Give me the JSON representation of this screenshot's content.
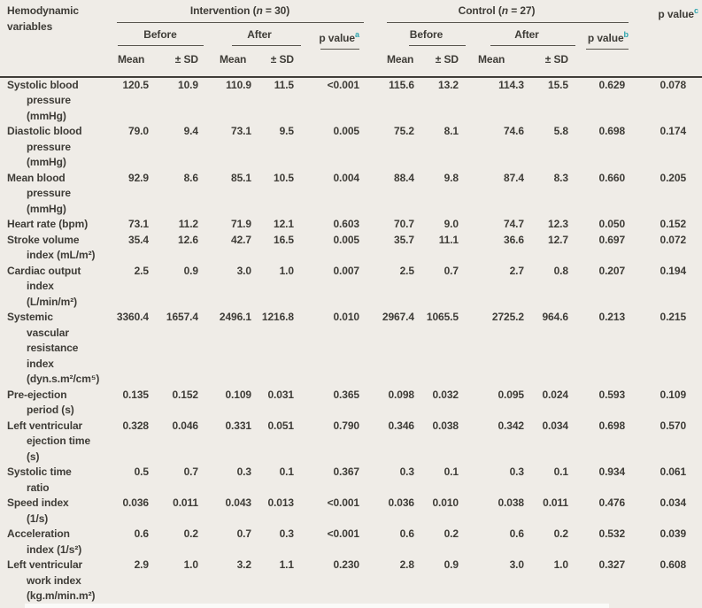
{
  "colors": {
    "background": "#efece7",
    "text": "#3e3c37",
    "rule": "#57544d",
    "rule_heavy": "#403e39",
    "superscript_teal": "#2ba3ad"
  },
  "header": {
    "variables_label": "Hemodynamic\nvariables",
    "intervention": {
      "pre": "Intervention (",
      "n": "n",
      "post": " = 30)"
    },
    "control": {
      "pre": "Control (",
      "n": "n",
      "post": " = 27)"
    },
    "before_label": "Before",
    "after_label": "After",
    "p_value_label": "p value",
    "sup_a": "a",
    "sup_b": "b",
    "sup_c": "c",
    "mean_label": "Mean",
    "sd_label": "± SD"
  },
  "table": {
    "column_keys": [
      "intervention_before_mean",
      "intervention_before_sd",
      "intervention_after_mean",
      "intervention_after_sd",
      "p_value_a",
      "control_before_mean",
      "control_before_sd",
      "control_after_mean",
      "control_after_sd",
      "p_value_b",
      "p_value_c"
    ],
    "rows": [
      {
        "label": "Systolic blood\npressure\n(mmHg)",
        "values": [
          "120.5",
          "10.9",
          "110.9",
          "11.5",
          "<0.001",
          "115.6",
          "13.2",
          "114.3",
          "15.5",
          "0.629",
          "0.078"
        ]
      },
      {
        "label": "Diastolic blood\npressure\n(mmHg)",
        "values": [
          "79.0",
          "9.4",
          "73.1",
          "9.5",
          "0.005",
          "75.2",
          "8.1",
          "74.6",
          "5.8",
          "0.698",
          "0.174"
        ]
      },
      {
        "label": "Mean blood\npressure\n(mmHg)",
        "values": [
          "92.9",
          "8.6",
          "85.1",
          "10.5",
          "0.004",
          "88.4",
          "9.8",
          "87.4",
          "8.3",
          "0.660",
          "0.205"
        ]
      },
      {
        "label": "Heart rate (bpm)",
        "values": [
          "73.1",
          "11.2",
          "71.9",
          "12.1",
          "0.603",
          "70.7",
          "9.0",
          "74.7",
          "12.3",
          "0.050",
          "0.152"
        ]
      },
      {
        "label": "Stroke volume\nindex (mL/m²)",
        "values": [
          "35.4",
          "12.6",
          "42.7",
          "16.5",
          "0.005",
          "35.7",
          "11.1",
          "36.6",
          "12.7",
          "0.697",
          "0.072"
        ]
      },
      {
        "label": "Cardiac output\nindex\n(L/min/m²)",
        "values": [
          "2.5",
          "0.9",
          "3.0",
          "1.0",
          "0.007",
          "2.5",
          "0.7",
          "2.7",
          "0.8",
          "0.207",
          "0.194"
        ]
      },
      {
        "label": "Systemic\nvascular\nresistance\nindex\n(dyn.s.m²/cm⁵)",
        "values": [
          "3360.4",
          "1657.4",
          "2496.1",
          "1216.8",
          "0.010",
          "2967.4",
          "1065.5",
          "2725.2",
          "964.6",
          "0.213",
          "0.215"
        ]
      },
      {
        "label": "Pre-ejection\nperiod (s)",
        "values": [
          "0.135",
          "0.152",
          "0.109",
          "0.031",
          "0.365",
          "0.098",
          "0.032",
          "0.095",
          "0.024",
          "0.593",
          "0.109"
        ]
      },
      {
        "label": "Left ventricular\nejection time\n(s)",
        "values": [
          "0.328",
          "0.046",
          "0.331",
          "0.051",
          "0.790",
          "0.346",
          "0.038",
          "0.342",
          "0.034",
          "0.698",
          "0.570"
        ]
      },
      {
        "label": "Systolic time\nratio",
        "values": [
          "0.5",
          "0.7",
          "0.3",
          "0.1",
          "0.367",
          "0.3",
          "0.1",
          "0.3",
          "0.1",
          "0.934",
          "0.061"
        ]
      },
      {
        "label": "Speed index\n(1/s)",
        "values": [
          "0.036",
          "0.011",
          "0.043",
          "0.013",
          "<0.001",
          "0.036",
          "0.010",
          "0.038",
          "0.011",
          "0.476",
          "0.034"
        ]
      },
      {
        "label": "Acceleration\nindex (1/s²)",
        "values": [
          "0.6",
          "0.2",
          "0.7",
          "0.3",
          "<0.001",
          "0.6",
          "0.2",
          "0.6",
          "0.2",
          "0.532",
          "0.039"
        ]
      },
      {
        "label": "Left ventricular\nwork index\n(kg.m/min.m²)",
        "values": [
          "2.9",
          "1.0",
          "3.2",
          "1.1",
          "0.230",
          "2.8",
          "0.9",
          "3.0",
          "1.0",
          "0.327",
          "0.608"
        ]
      }
    ]
  }
}
